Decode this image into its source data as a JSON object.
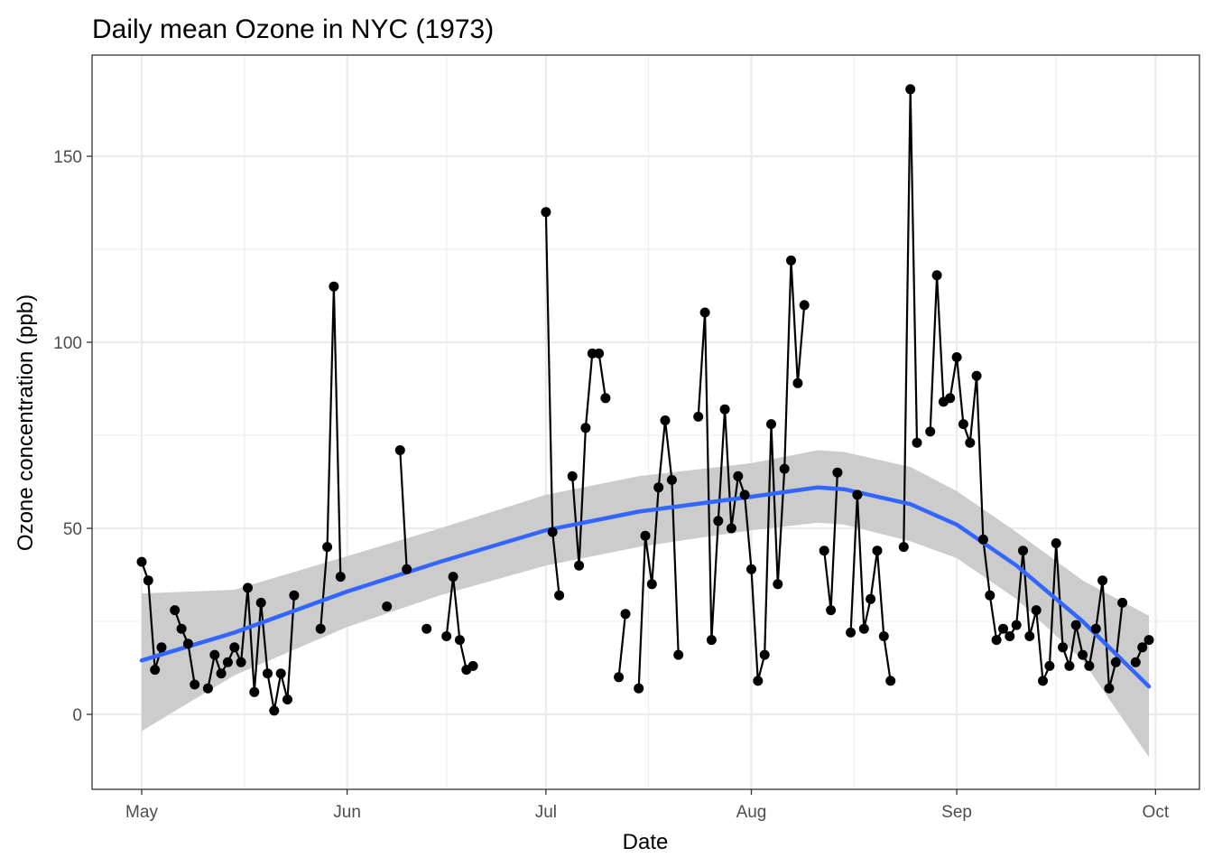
{
  "chart_data": {
    "type": "line",
    "title": "Daily mean Ozone in NYC (1973)",
    "xlabel": "Date",
    "ylabel": "Ozone concentration (ppb)",
    "x_type": "date",
    "xlim": [
      "1973-05-01",
      "1973-09-30"
    ],
    "ylim": [
      -20,
      175
    ],
    "xticks": [
      {
        "date": "1973-05-01",
        "label": "May"
      },
      {
        "date": "1973-06-01",
        "label": "Jun"
      },
      {
        "date": "1973-07-01",
        "label": "Jul"
      },
      {
        "date": "1973-08-01",
        "label": "Aug"
      },
      {
        "date": "1973-09-01",
        "label": "Sep"
      },
      {
        "date": "1973-10-01",
        "label": "Oct"
      }
    ],
    "yticks": [
      0,
      50,
      100,
      150
    ],
    "grid": true,
    "legend": "none",
    "colors": {
      "line": "#000000",
      "points": "#000000",
      "smooth": "#3366ff",
      "band": "#cccccc",
      "grid": "#ebebeb",
      "panel_border": "#333333"
    },
    "series": [
      {
        "values": [
          {
            "date": "1973-05-01",
            "y": 41
          },
          {
            "date": "1973-05-02",
            "y": 36
          },
          {
            "date": "1973-05-03",
            "y": 12
          },
          {
            "date": "1973-05-04",
            "y": 18
          },
          {
            "date": "1973-05-05",
            "y": null
          },
          {
            "date": "1973-05-06",
            "y": 28
          },
          {
            "date": "1973-05-07",
            "y": 23
          },
          {
            "date": "1973-05-08",
            "y": 19
          },
          {
            "date": "1973-05-09",
            "y": 8
          },
          {
            "date": "1973-05-10",
            "y": null
          },
          {
            "date": "1973-05-11",
            "y": 7
          },
          {
            "date": "1973-05-12",
            "y": 16
          },
          {
            "date": "1973-05-13",
            "y": 11
          },
          {
            "date": "1973-05-14",
            "y": 14
          },
          {
            "date": "1973-05-15",
            "y": 18
          },
          {
            "date": "1973-05-16",
            "y": 14
          },
          {
            "date": "1973-05-17",
            "y": 34
          },
          {
            "date": "1973-05-18",
            "y": 6
          },
          {
            "date": "1973-05-19",
            "y": 30
          },
          {
            "date": "1973-05-20",
            "y": 11
          },
          {
            "date": "1973-05-21",
            "y": 1
          },
          {
            "date": "1973-05-22",
            "y": 11
          },
          {
            "date": "1973-05-23",
            "y": 4
          },
          {
            "date": "1973-05-24",
            "y": 32
          },
          {
            "date": "1973-05-25",
            "y": null
          },
          {
            "date": "1973-05-26",
            "y": null
          },
          {
            "date": "1973-05-27",
            "y": null
          },
          {
            "date": "1973-05-28",
            "y": 23
          },
          {
            "date": "1973-05-29",
            "y": 45
          },
          {
            "date": "1973-05-30",
            "y": 115
          },
          {
            "date": "1973-05-31",
            "y": 37
          },
          {
            "date": "1973-06-01",
            "y": null
          },
          {
            "date": "1973-06-02",
            "y": null
          },
          {
            "date": "1973-06-03",
            "y": null
          },
          {
            "date": "1973-06-04",
            "y": null
          },
          {
            "date": "1973-06-05",
            "y": null
          },
          {
            "date": "1973-06-06",
            "y": null
          },
          {
            "date": "1973-06-07",
            "y": 29
          },
          {
            "date": "1973-06-08",
            "y": null
          },
          {
            "date": "1973-06-09",
            "y": 71
          },
          {
            "date": "1973-06-10",
            "y": 39
          },
          {
            "date": "1973-06-11",
            "y": null
          },
          {
            "date": "1973-06-12",
            "y": null
          },
          {
            "date": "1973-06-13",
            "y": 23
          },
          {
            "date": "1973-06-14",
            "y": null
          },
          {
            "date": "1973-06-15",
            "y": null
          },
          {
            "date": "1973-06-16",
            "y": 21
          },
          {
            "date": "1973-06-17",
            "y": 37
          },
          {
            "date": "1973-06-18",
            "y": 20
          },
          {
            "date": "1973-06-19",
            "y": 12
          },
          {
            "date": "1973-06-20",
            "y": 13
          },
          {
            "date": "1973-06-21",
            "y": null
          },
          {
            "date": "1973-06-22",
            "y": null
          },
          {
            "date": "1973-06-23",
            "y": null
          },
          {
            "date": "1973-06-24",
            "y": null
          },
          {
            "date": "1973-06-25",
            "y": null
          },
          {
            "date": "1973-06-26",
            "y": null
          },
          {
            "date": "1973-06-27",
            "y": null
          },
          {
            "date": "1973-06-28",
            "y": null
          },
          {
            "date": "1973-06-29",
            "y": null
          },
          {
            "date": "1973-06-30",
            "y": null
          },
          {
            "date": "1973-07-01",
            "y": 135
          },
          {
            "date": "1973-07-02",
            "y": 49
          },
          {
            "date": "1973-07-03",
            "y": 32
          },
          {
            "date": "1973-07-04",
            "y": null
          },
          {
            "date": "1973-07-05",
            "y": 64
          },
          {
            "date": "1973-07-06",
            "y": 40
          },
          {
            "date": "1973-07-07",
            "y": 77
          },
          {
            "date": "1973-07-08",
            "y": 97
          },
          {
            "date": "1973-07-09",
            "y": 97
          },
          {
            "date": "1973-07-10",
            "y": 85
          },
          {
            "date": "1973-07-11",
            "y": null
          },
          {
            "date": "1973-07-12",
            "y": 10
          },
          {
            "date": "1973-07-13",
            "y": 27
          },
          {
            "date": "1973-07-14",
            "y": null
          },
          {
            "date": "1973-07-15",
            "y": 7
          },
          {
            "date": "1973-07-16",
            "y": 48
          },
          {
            "date": "1973-07-17",
            "y": 35
          },
          {
            "date": "1973-07-18",
            "y": 61
          },
          {
            "date": "1973-07-19",
            "y": 79
          },
          {
            "date": "1973-07-20",
            "y": 63
          },
          {
            "date": "1973-07-21",
            "y": 16
          },
          {
            "date": "1973-07-22",
            "y": null
          },
          {
            "date": "1973-07-23",
            "y": null
          },
          {
            "date": "1973-07-24",
            "y": 80
          },
          {
            "date": "1973-07-25",
            "y": 108
          },
          {
            "date": "1973-07-26",
            "y": 20
          },
          {
            "date": "1973-07-27",
            "y": 52
          },
          {
            "date": "1973-07-28",
            "y": 82
          },
          {
            "date": "1973-07-29",
            "y": 50
          },
          {
            "date": "1973-07-30",
            "y": 64
          },
          {
            "date": "1973-07-31",
            "y": 59
          },
          {
            "date": "1973-08-01",
            "y": 39
          },
          {
            "date": "1973-08-02",
            "y": 9
          },
          {
            "date": "1973-08-03",
            "y": 16
          },
          {
            "date": "1973-08-04",
            "y": 78
          },
          {
            "date": "1973-08-05",
            "y": 35
          },
          {
            "date": "1973-08-06",
            "y": 66
          },
          {
            "date": "1973-08-07",
            "y": 122
          },
          {
            "date": "1973-08-08",
            "y": 89
          },
          {
            "date": "1973-08-09",
            "y": 110
          },
          {
            "date": "1973-08-10",
            "y": null
          },
          {
            "date": "1973-08-11",
            "y": null
          },
          {
            "date": "1973-08-12",
            "y": 44
          },
          {
            "date": "1973-08-13",
            "y": 28
          },
          {
            "date": "1973-08-14",
            "y": 65
          },
          {
            "date": "1973-08-15",
            "y": null
          },
          {
            "date": "1973-08-16",
            "y": 22
          },
          {
            "date": "1973-08-17",
            "y": 59
          },
          {
            "date": "1973-08-18",
            "y": 23
          },
          {
            "date": "1973-08-19",
            "y": 31
          },
          {
            "date": "1973-08-20",
            "y": 44
          },
          {
            "date": "1973-08-21",
            "y": 21
          },
          {
            "date": "1973-08-22",
            "y": 9
          },
          {
            "date": "1973-08-23",
            "y": null
          },
          {
            "date": "1973-08-24",
            "y": 45
          },
          {
            "date": "1973-08-25",
            "y": 168
          },
          {
            "date": "1973-08-26",
            "y": 73
          },
          {
            "date": "1973-08-27",
            "y": null
          },
          {
            "date": "1973-08-28",
            "y": 76
          },
          {
            "date": "1973-08-29",
            "y": 118
          },
          {
            "date": "1973-08-30",
            "y": 84
          },
          {
            "date": "1973-08-31",
            "y": 85
          },
          {
            "date": "1973-09-01",
            "y": 96
          },
          {
            "date": "1973-09-02",
            "y": 78
          },
          {
            "date": "1973-09-03",
            "y": 73
          },
          {
            "date": "1973-09-04",
            "y": 91
          },
          {
            "date": "1973-09-05",
            "y": 47
          },
          {
            "date": "1973-09-06",
            "y": 32
          },
          {
            "date": "1973-09-07",
            "y": 20
          },
          {
            "date": "1973-09-08",
            "y": 23
          },
          {
            "date": "1973-09-09",
            "y": 21
          },
          {
            "date": "1973-09-10",
            "y": 24
          },
          {
            "date": "1973-09-11",
            "y": 44
          },
          {
            "date": "1973-09-12",
            "y": 21
          },
          {
            "date": "1973-09-13",
            "y": 28
          },
          {
            "date": "1973-09-14",
            "y": 9
          },
          {
            "date": "1973-09-15",
            "y": 13
          },
          {
            "date": "1973-09-16",
            "y": 46
          },
          {
            "date": "1973-09-17",
            "y": 18
          },
          {
            "date": "1973-09-18",
            "y": 13
          },
          {
            "date": "1973-09-19",
            "y": 24
          },
          {
            "date": "1973-09-20",
            "y": 16
          },
          {
            "date": "1973-09-21",
            "y": 13
          },
          {
            "date": "1973-09-22",
            "y": 23
          },
          {
            "date": "1973-09-23",
            "y": 36
          },
          {
            "date": "1973-09-24",
            "y": 7
          },
          {
            "date": "1973-09-25",
            "y": 14
          },
          {
            "date": "1973-09-26",
            "y": 30
          },
          {
            "date": "1973-09-27",
            "y": null
          },
          {
            "date": "1973-09-28",
            "y": 14
          },
          {
            "date": "1973-09-29",
            "y": 18
          },
          {
            "date": "1973-09-30",
            "y": 20
          }
        ]
      }
    ],
    "smooth": {
      "method": "loess",
      "fit": [
        {
          "date": "1973-05-01",
          "y": 14.5
        },
        {
          "date": "1973-05-15",
          "y": 22
        },
        {
          "date": "1973-06-01",
          "y": 33
        },
        {
          "date": "1973-06-15",
          "y": 41
        },
        {
          "date": "1973-07-01",
          "y": 49.5
        },
        {
          "date": "1973-07-15",
          "y": 54.5
        },
        {
          "date": "1973-08-01",
          "y": 58.5
        },
        {
          "date": "1973-08-11",
          "y": 61
        },
        {
          "date": "1973-08-15",
          "y": 60.5
        },
        {
          "date": "1973-08-25",
          "y": 56.5
        },
        {
          "date": "1973-09-01",
          "y": 51
        },
        {
          "date": "1973-09-10",
          "y": 40
        },
        {
          "date": "1973-09-20",
          "y": 25
        },
        {
          "date": "1973-09-30",
          "y": 7.5
        }
      ],
      "lower": [
        {
          "date": "1973-05-01",
          "y": -4.5
        },
        {
          "date": "1973-05-15",
          "y": 10.5
        },
        {
          "date": "1973-06-01",
          "y": 23.5
        },
        {
          "date": "1973-06-15",
          "y": 32
        },
        {
          "date": "1973-07-01",
          "y": 40
        },
        {
          "date": "1973-07-15",
          "y": 45
        },
        {
          "date": "1973-08-01",
          "y": 49.5
        },
        {
          "date": "1973-08-11",
          "y": 51.5
        },
        {
          "date": "1973-08-15",
          "y": 51
        },
        {
          "date": "1973-08-25",
          "y": 46.5
        },
        {
          "date": "1973-09-01",
          "y": 42
        },
        {
          "date": "1973-09-10",
          "y": 31
        },
        {
          "date": "1973-09-20",
          "y": 14.5
        },
        {
          "date": "1973-09-30",
          "y": -11.5
        }
      ],
      "upper": [
        {
          "date": "1973-05-01",
          "y": 32.5
        },
        {
          "date": "1973-05-15",
          "y": 33.5
        },
        {
          "date": "1973-06-01",
          "y": 42.5
        },
        {
          "date": "1973-06-15",
          "y": 50
        },
        {
          "date": "1973-07-01",
          "y": 59
        },
        {
          "date": "1973-07-15",
          "y": 64
        },
        {
          "date": "1973-08-01",
          "y": 67.5
        },
        {
          "date": "1973-08-11",
          "y": 71
        },
        {
          "date": "1973-08-15",
          "y": 70.5
        },
        {
          "date": "1973-08-25",
          "y": 66.5
        },
        {
          "date": "1973-09-01",
          "y": 60
        },
        {
          "date": "1973-09-10",
          "y": 49
        },
        {
          "date": "1973-09-20",
          "y": 36
        },
        {
          "date": "1973-09-30",
          "y": 26.5
        }
      ]
    }
  }
}
